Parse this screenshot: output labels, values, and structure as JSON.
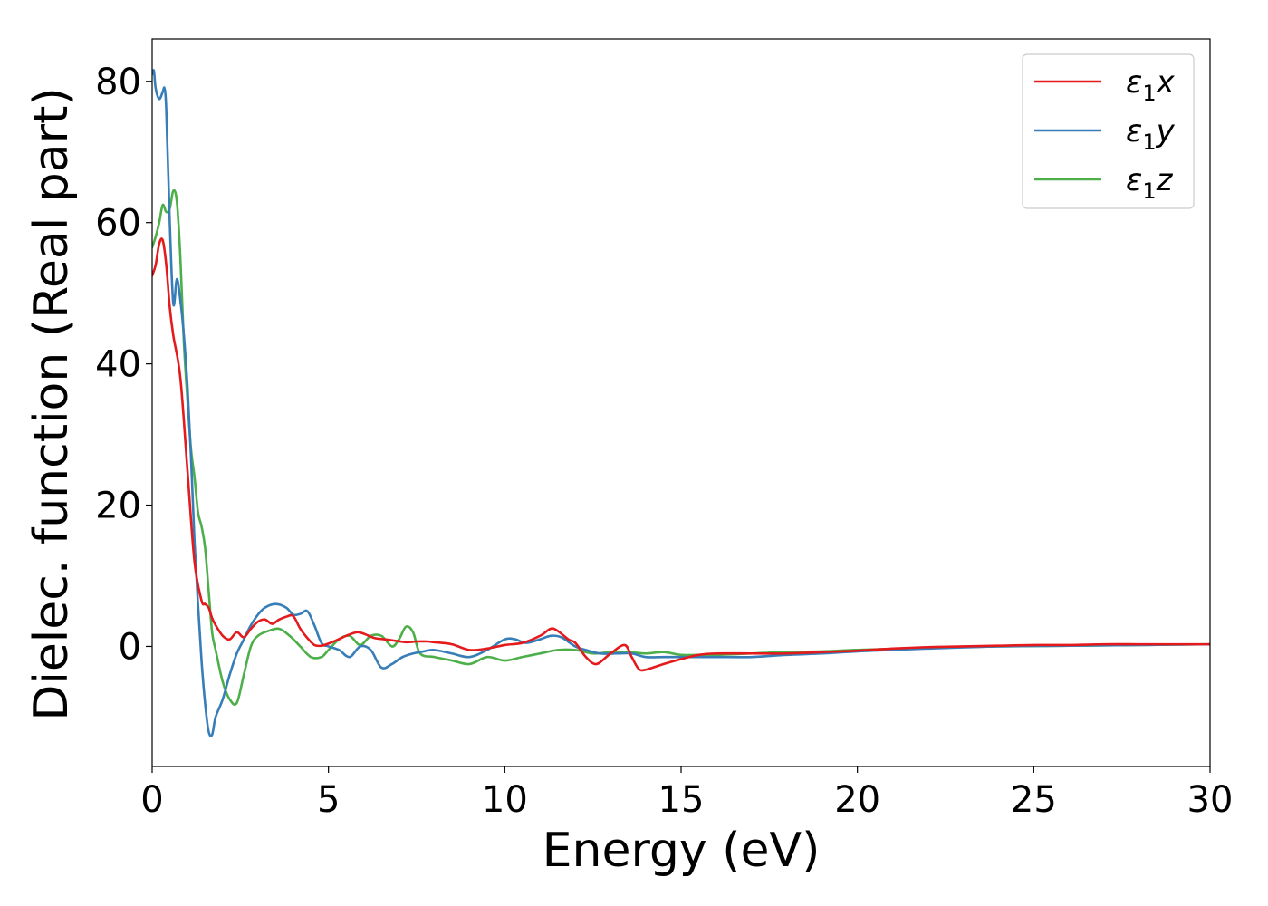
{
  "chart_data": {
    "type": "line",
    "title": "",
    "xlabel": "Energy (eV)",
    "ylabel": "Dielec. function (Real part)",
    "xlim": [
      0,
      30
    ],
    "ylim": [
      -17,
      86
    ],
    "x_ticks": [
      0,
      5,
      10,
      15,
      20,
      25,
      30
    ],
    "y_ticks": [
      0,
      20,
      40,
      60,
      80
    ],
    "grid": false,
    "legend_position": "top-right",
    "series": [
      {
        "name": "ε1x",
        "legend_base": "ε",
        "legend_sub": "1",
        "legend_suffix": "x",
        "color": "#e41a1c",
        "x": [
          0,
          0.1,
          0.2,
          0.3,
          0.4,
          0.5,
          0.6,
          0.8,
          1.0,
          1.2,
          1.4,
          1.5,
          1.6,
          1.7,
          1.8,
          2.0,
          2.2,
          2.4,
          2.6,
          2.8,
          3.0,
          3.2,
          3.4,
          3.6,
          3.8,
          4.0,
          4.2,
          4.4,
          4.6,
          4.8,
          5.0,
          5.2,
          5.5,
          5.8,
          6.0,
          6.3,
          6.6,
          6.9,
          7.2,
          7.5,
          7.8,
          8.0,
          8.5,
          9.0,
          9.5,
          10.0,
          10.5,
          11.0,
          11.3,
          11.5,
          11.8,
          12.0,
          12.3,
          12.6,
          13.0,
          13.4,
          13.6,
          13.8,
          14.0,
          14.5,
          15.0,
          15.5,
          16.0,
          17.0,
          18.0,
          19.0,
          20.0,
          21.0,
          22.0,
          23.0,
          24.0,
          25.0,
          26.0,
          27.0,
          28.0,
          29.0,
          30.0
        ],
        "values": [
          52.5,
          54,
          57,
          57.5,
          54,
          48,
          44,
          38,
          25,
          12,
          6.5,
          6,
          5.5,
          4,
          3,
          1.5,
          1,
          2,
          1.3,
          2.5,
          3.5,
          3.8,
          3.2,
          3.8,
          4.2,
          4.3,
          2.5,
          1.2,
          0.2,
          0.1,
          0.4,
          0.8,
          1.5,
          2,
          1.8,
          1.2,
          1,
          0.8,
          0.6,
          0.7,
          0.7,
          0.6,
          0.3,
          -0.5,
          -0.3,
          0.2,
          0.5,
          1.5,
          2.5,
          2.2,
          1,
          0.5,
          -1.5,
          -2.5,
          -1,
          0.2,
          -1.5,
          -3.2,
          -3.3,
          -2.5,
          -1.8,
          -1.2,
          -1,
          -1,
          -1,
          -0.8,
          -0.6,
          -0.3,
          -0.1,
          0,
          0.1,
          0.2,
          0.2,
          0.3,
          0.3,
          0.3,
          0.3
        ]
      },
      {
        "name": "ε1y",
        "legend_base": "ε",
        "legend_sub": "1",
        "legend_suffix": "y",
        "color": "#377eb8",
        "x": [
          0,
          0.05,
          0.1,
          0.2,
          0.3,
          0.35,
          0.4,
          0.5,
          0.6,
          0.7,
          0.8,
          0.9,
          1.0,
          1.1,
          1.2,
          1.3,
          1.4,
          1.5,
          1.6,
          1.7,
          1.8,
          2.0,
          2.2,
          2.4,
          2.6,
          2.8,
          3.0,
          3.2,
          3.5,
          3.8,
          4.0,
          4.2,
          4.4,
          4.6,
          4.8,
          5.0,
          5.3,
          5.6,
          5.9,
          6.2,
          6.5,
          6.8,
          7.1,
          7.4,
          7.7,
          8.0,
          8.5,
          9.0,
          9.5,
          10.0,
          10.3,
          10.6,
          11.0,
          11.3,
          11.6,
          12.0,
          12.3,
          12.7,
          13.2,
          13.6,
          14.0,
          14.5,
          15.0,
          16.0,
          17.0,
          18.0,
          19.0,
          20.0,
          21.0,
          22.0,
          24.0,
          26.0,
          28.0,
          30.0
        ],
        "values": [
          81,
          81.5,
          79,
          77.5,
          78.5,
          79,
          76,
          60,
          48.5,
          52,
          49,
          44,
          37,
          27,
          15,
          6,
          -2,
          -8,
          -12,
          -12.5,
          -10,
          -7.5,
          -4,
          -1,
          1,
          3,
          4.5,
          5.5,
          6,
          5.5,
          4.5,
          4.6,
          5,
          3,
          0.5,
          0,
          -0.5,
          -1.5,
          0,
          -0.5,
          -3,
          -2.5,
          -1.5,
          -1,
          -0.7,
          -0.5,
          -1,
          -1.5,
          -0.5,
          1,
          1,
          0.5,
          1,
          1.5,
          1.3,
          0,
          -0.5,
          -1,
          -1,
          -1,
          -1.5,
          -1.5,
          -1.5,
          -1.5,
          -1.5,
          -1.2,
          -1,
          -0.7,
          -0.5,
          -0.3,
          0,
          0.1,
          0.2,
          0.3
        ]
      },
      {
        "name": "ε1z",
        "legend_base": "ε",
        "legend_sub": "1",
        "legend_suffix": "z",
        "color": "#4daf4a",
        "x": [
          0,
          0.1,
          0.2,
          0.3,
          0.4,
          0.5,
          0.6,
          0.7,
          0.8,
          0.9,
          1.0,
          1.1,
          1.2,
          1.3,
          1.4,
          1.5,
          1.6,
          1.7,
          1.8,
          2.0,
          2.2,
          2.4,
          2.6,
          2.8,
          3.0,
          3.3,
          3.6,
          3.9,
          4.2,
          4.5,
          4.8,
          5.0,
          5.3,
          5.6,
          5.9,
          6.2,
          6.5,
          6.8,
          7.0,
          7.2,
          7.4,
          7.6,
          8.0,
          8.5,
          9.0,
          9.5,
          10.0,
          10.5,
          11.0,
          11.5,
          12.0,
          12.5,
          13.0,
          13.5,
          14.0,
          14.5,
          15.0,
          15.5,
          16.0,
          17.0,
          18.0,
          19.0,
          20.0,
          22.0,
          24.0,
          26.0,
          28.0,
          30.0
        ],
        "values": [
          56.5,
          58,
          60,
          62.5,
          61.5,
          62,
          64.5,
          63,
          55,
          43,
          35,
          28,
          24,
          19,
          17,
          14,
          8,
          2,
          -0.5,
          -5,
          -7.5,
          -8,
          -4,
          0,
          1.5,
          2.2,
          2.5,
          1.5,
          0,
          -1.5,
          -1.5,
          -0.5,
          1,
          1.5,
          0.2,
          1.5,
          1.5,
          0,
          1,
          2.8,
          2,
          -1,
          -1.5,
          -2,
          -2.5,
          -1.5,
          -2,
          -1.5,
          -1,
          -0.5,
          -0.5,
          -1,
          -0.8,
          -0.8,
          -1,
          -0.8,
          -1.2,
          -1.2,
          -1.2,
          -1,
          -0.8,
          -0.7,
          -0.5,
          -0.2,
          0,
          0.1,
          0.2,
          0.3
        ]
      }
    ]
  }
}
